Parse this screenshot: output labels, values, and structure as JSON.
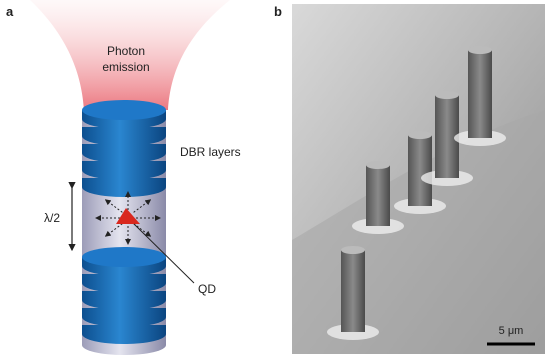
{
  "panel_a": {
    "label": "a",
    "photon_emission": [
      "Photon",
      "emission"
    ],
    "dbr_layers": "DBR layers",
    "half_wavelength": "λ/2",
    "quantum_dot": "QD"
  },
  "panel_b": {
    "label": "b",
    "scale_bar": "5 μm"
  }
}
